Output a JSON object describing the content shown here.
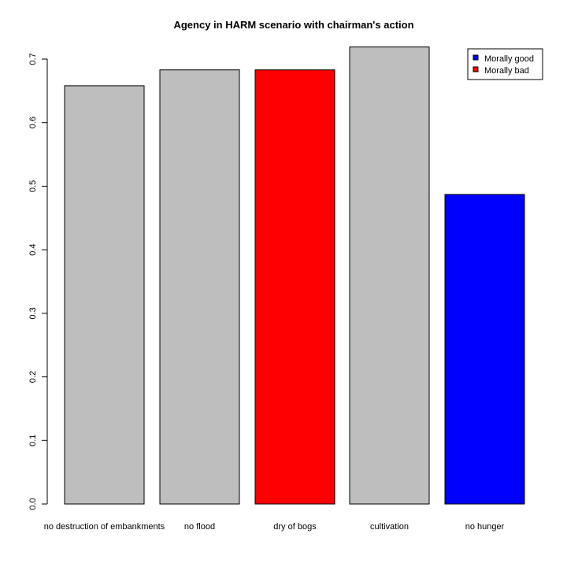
{
  "chart_data": {
    "type": "bar",
    "title": "Agency in HARM scenario with chairman's action",
    "xlabel": "",
    "ylabel": "",
    "categories": [
      "no destruction of embankments",
      "no flood",
      "dry of bogs",
      "cultivation",
      "no hunger"
    ],
    "values": [
      0.658,
      0.683,
      0.683,
      0.719,
      0.487
    ],
    "bar_colors": [
      "#bebebe",
      "#bebebe",
      "#ff0000",
      "#bebebe",
      "#0000ff"
    ],
    "ylim": [
      0,
      0.7
    ],
    "yticks": [
      "0.0",
      "0.1",
      "0.2",
      "0.3",
      "0.4",
      "0.5",
      "0.6",
      "0.7"
    ],
    "grid": false,
    "legend": {
      "placement": "top-right",
      "entries": [
        {
          "label": "Morally good",
          "color": "#0000ff"
        },
        {
          "label": "Morally bad",
          "color": "#ff0000"
        }
      ]
    }
  }
}
